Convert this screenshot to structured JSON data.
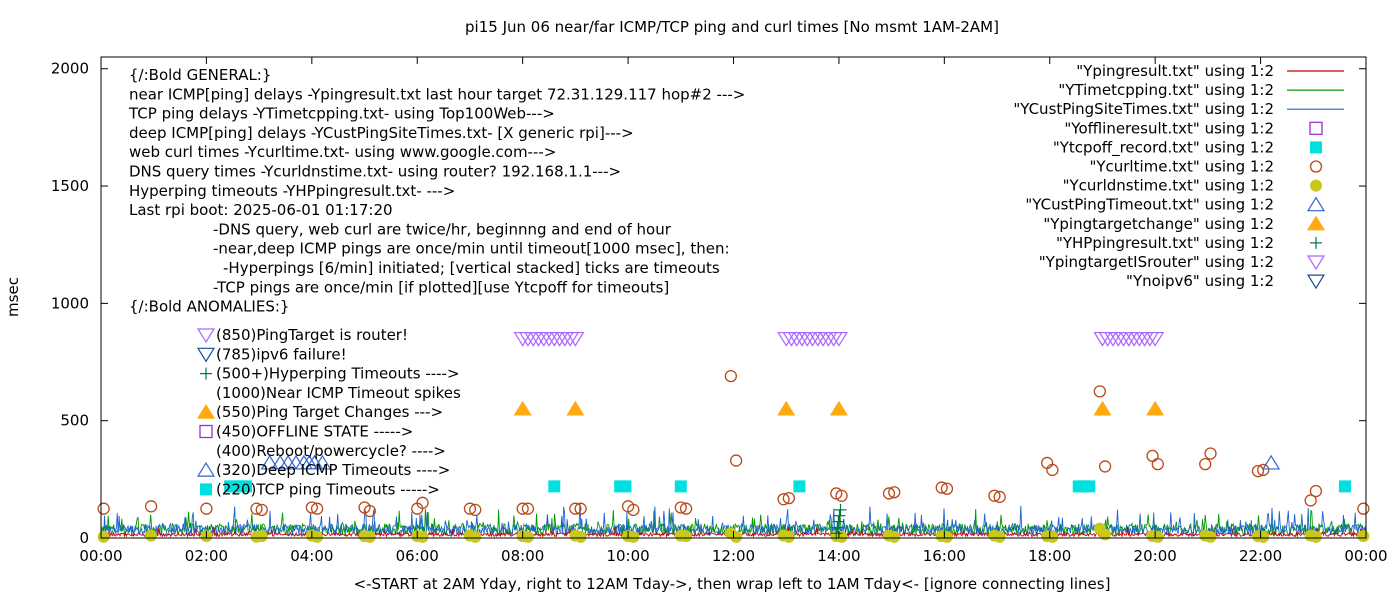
{
  "chart_data": {
    "type": "scatter",
    "title": "pi15 Jun 06  near/far ICMP/TCP ping and curl times [No msmt 1AM-2AM]",
    "xlabel": "<-START at 2AM Yday, right to 12AM Tday->, then wrap left to 1AM Tday<- [ignore connecting lines]",
    "ylabel": "msec",
    "xlim": [
      0,
      24
    ],
    "ylim": [
      0,
      2050
    ],
    "x_ticks": [
      {
        "v": 0,
        "label": "00:00"
      },
      {
        "v": 2,
        "label": "02:00"
      },
      {
        "v": 4,
        "label": "04:00"
      },
      {
        "v": 6,
        "label": "06:00"
      },
      {
        "v": 8,
        "label": "08:00"
      },
      {
        "v": 10,
        "label": "10:00"
      },
      {
        "v": 12,
        "label": "12:00"
      },
      {
        "v": 14,
        "label": "14:00"
      },
      {
        "v": 16,
        "label": "16:00"
      },
      {
        "v": 18,
        "label": "18:00"
      },
      {
        "v": 20,
        "label": "20:00"
      },
      {
        "v": 22,
        "label": "22:00"
      },
      {
        "v": 24,
        "label": "00:00"
      }
    ],
    "y_ticks": [
      {
        "v": 0,
        "label": "0"
      },
      {
        "v": 500,
        "label": "500"
      },
      {
        "v": 1000,
        "label": "1000"
      },
      {
        "v": 1500,
        "label": "1500"
      },
      {
        "v": 2000,
        "label": "2000"
      }
    ],
    "grid": false,
    "legend_position": "top-right",
    "legend": [
      {
        "label": "\"Ypingresult.txt\" using 1:2",
        "kind": "line",
        "color": "#cc0000"
      },
      {
        "label": "\"YTimetcpping.txt\" using 1:2",
        "kind": "line",
        "color": "#009900"
      },
      {
        "label": "\"YCustPingSiteTimes.txt\" using 1:2",
        "kind": "line",
        "color": "#1a66cc"
      },
      {
        "label": "\"Yofflineresult.txt\" using 1:2",
        "kind": "square-open",
        "color": "#9933cc"
      },
      {
        "label": "\"Ytcpoff_record.txt\" using 1:2",
        "kind": "square-filled",
        "color": "#00e0e0"
      },
      {
        "label": "\"Ycurltime.txt\" using 1:2",
        "kind": "circle-open",
        "color": "#b84a1a"
      },
      {
        "label": "\"Ycurldnstime.txt\" using 1:2",
        "kind": "circle-filled",
        "color": "#c8c81a"
      },
      {
        "label": "\"YCustPingTimeout.txt\" using 1:2",
        "kind": "triangle-up-open",
        "color": "#3366cc"
      },
      {
        "label": "\"Ypingtargetchange\" using 1:2",
        "kind": "triangle-up-filled",
        "color": "#ffaa11"
      },
      {
        "label": "\"YHPpingresult.txt\" using 1:2",
        "kind": "plus",
        "color": "#007744"
      },
      {
        "label": "\"YpingtargetISrouter\" using 1:2",
        "kind": "triangle-down-open",
        "color": "#aa66ff"
      },
      {
        "label": "\"Ynoipv6\" using 1:2",
        "kind": "triangle-down-open",
        "color": "#1a4d99"
      }
    ],
    "info_lines": [
      {
        "text": "{/:Bold GENERAL:}",
        "indent": 0
      },
      {
        "text": "near ICMP[ping] delays -Ypingresult.txt last hour target 72.31.129.117 hop#2 --->",
        "indent": 0
      },
      {
        "text": "TCP ping delays -YTimetcpping.txt- using Top100Web--->",
        "indent": 0
      },
      {
        "text": "deep ICMP[ping] delays -YCustPingSiteTimes.txt- [X generic rpi]--->",
        "indent": 0
      },
      {
        "text": "web curl times -Ycurltime.txt- using www.google.com--->",
        "indent": 0
      },
      {
        "text": "DNS query times -Ycurldnstime.txt- using router? 192.168.1.1--->",
        "indent": 0
      },
      {
        "text": "Hyperping timeouts -YHPpingresult.txt- --->",
        "indent": 0
      },
      {
        "text": "Last rpi boot: 2025-06-01 01:17:20",
        "indent": 0
      },
      {
        "text": "-DNS query, web curl are twice/hr, beginnng and end of hour",
        "indent": 1
      },
      {
        "text": "-near,deep ICMP pings are once/min until timeout[1000 msec], then:",
        "indent": 1
      },
      {
        "text": "-Hyperpings [6/min] initiated; [vertical stacked] ticks are timeouts",
        "indent": 2
      },
      {
        "text": "-TCP pings are once/min [if plotted][use Ytcpoff for timeouts]",
        "indent": 1
      },
      {
        "text": "{/:Bold ANOMALIES:}",
        "indent": 0
      }
    ],
    "anomaly_lines": [
      {
        "text": "(850)PingTarget is router!",
        "marker": "triangle-down-open",
        "color": "#aa66ff"
      },
      {
        "text": "(785)ipv6 failure!",
        "marker": "triangle-down-open",
        "color": "#1a4d99"
      },
      {
        "text": "(500+)Hyperping Timeouts ---->",
        "marker": "plus",
        "color": "#007744"
      },
      {
        "text": "(1000)Near ICMP Timeout spikes",
        "marker": "",
        "color": ""
      },
      {
        "text": "(550)Ping Target Changes --->",
        "marker": "triangle-up-filled",
        "color": "#ffaa11"
      },
      {
        "text": "(450)OFFLINE STATE ----->",
        "marker": "square-open",
        "color": "#9933cc"
      },
      {
        "text": "(400)Reboot/powercycle? ---->",
        "marker": "",
        "color": ""
      },
      {
        "text": "(320)Deep ICMP Timeouts ---->",
        "marker": "triangle-up-open",
        "color": "#3366cc"
      },
      {
        "text": "(220)TCP ping Timeouts ----->",
        "marker": "square-filled",
        "color": "#00e0e0"
      }
    ],
    "series": [
      {
        "name": "\"Ycurltime.txt\" using 1:2",
        "kind": "circle-open",
        "color": "#b84a1a",
        "points": [
          [
            0.05,
            125
          ],
          [
            0.95,
            135
          ],
          [
            2.0,
            125
          ],
          [
            2.95,
            125
          ],
          [
            3.05,
            120
          ],
          [
            4.0,
            130
          ],
          [
            4.1,
            125
          ],
          [
            5.0,
            130
          ],
          [
            5.1,
            115
          ],
          [
            6.0,
            125
          ],
          [
            6.1,
            150
          ],
          [
            7.0,
            125
          ],
          [
            7.1,
            120
          ],
          [
            8.0,
            125
          ],
          [
            8.1,
            125
          ],
          [
            9.0,
            125
          ],
          [
            9.1,
            125
          ],
          [
            10.0,
            135
          ],
          [
            10.1,
            120
          ],
          [
            11.0,
            130
          ],
          [
            11.1,
            125
          ],
          [
            11.95,
            690
          ],
          [
            12.05,
            330
          ],
          [
            12.95,
            165
          ],
          [
            13.05,
            170
          ],
          [
            13.95,
            190
          ],
          [
            14.05,
            180
          ],
          [
            14.95,
            190
          ],
          [
            15.05,
            195
          ],
          [
            15.95,
            215
          ],
          [
            16.05,
            210
          ],
          [
            16.95,
            180
          ],
          [
            17.05,
            175
          ],
          [
            17.95,
            320
          ],
          [
            18.05,
            290
          ],
          [
            18.95,
            625
          ],
          [
            19.05,
            305
          ],
          [
            19.95,
            350
          ],
          [
            20.05,
            315
          ],
          [
            20.95,
            315
          ],
          [
            21.05,
            360
          ],
          [
            21.95,
            285
          ],
          [
            22.05,
            290
          ],
          [
            22.95,
            160
          ],
          [
            23.05,
            200
          ],
          [
            23.95,
            125
          ]
        ]
      },
      {
        "name": "\"Ycurldnstime.txt\" using 1:2",
        "kind": "circle-filled",
        "color": "#c8c81a",
        "points": [
          [
            0.05,
            5
          ],
          [
            0.95,
            10
          ],
          [
            2.0,
            8
          ],
          [
            2.95,
            5
          ],
          [
            3.05,
            8
          ],
          [
            4.0,
            10
          ],
          [
            4.1,
            5
          ],
          [
            5.0,
            8
          ],
          [
            5.1,
            5
          ],
          [
            6.0,
            8
          ],
          [
            6.1,
            5
          ],
          [
            7.0,
            10
          ],
          [
            7.1,
            5
          ],
          [
            8.0,
            8
          ],
          [
            8.1,
            5
          ],
          [
            9.0,
            10
          ],
          [
            9.1,
            5
          ],
          [
            10.0,
            8
          ],
          [
            10.1,
            5
          ],
          [
            11.0,
            10
          ],
          [
            11.1,
            8
          ],
          [
            11.95,
            20
          ],
          [
            12.05,
            5
          ],
          [
            12.95,
            10
          ],
          [
            13.05,
            5
          ],
          [
            13.95,
            8
          ],
          [
            14.05,
            5
          ],
          [
            14.95,
            10
          ],
          [
            15.05,
            5
          ],
          [
            15.95,
            8
          ],
          [
            16.05,
            5
          ],
          [
            16.95,
            10
          ],
          [
            17.05,
            5
          ],
          [
            17.95,
            8
          ],
          [
            18.05,
            5
          ],
          [
            18.95,
            40
          ],
          [
            19.05,
            15
          ],
          [
            19.95,
            8
          ],
          [
            20.05,
            5
          ],
          [
            20.95,
            10
          ],
          [
            21.05,
            5
          ],
          [
            21.95,
            8
          ],
          [
            22.05,
            5
          ],
          [
            22.95,
            10
          ],
          [
            23.05,
            5
          ],
          [
            23.95,
            8
          ]
        ]
      },
      {
        "name": "\"Ytcpoff_record.txt\" using 1:2",
        "kind": "square-filled",
        "color": "#00e0e0",
        "points": [
          [
            2.45,
            220
          ],
          [
            2.55,
            220
          ],
          [
            2.65,
            220
          ],
          [
            2.75,
            220
          ],
          [
            8.6,
            220
          ],
          [
            9.85,
            220
          ],
          [
            9.95,
            220
          ],
          [
            11.0,
            220
          ],
          [
            13.25,
            220
          ],
          [
            18.55,
            220
          ],
          [
            18.65,
            220
          ],
          [
            18.75,
            220
          ],
          [
            23.6,
            220
          ]
        ]
      },
      {
        "name": "\"YCustPingTimeout.txt\" using 1:2",
        "kind": "triangle-up-open",
        "color": "#3366cc",
        "points": [
          [
            3.2,
            320
          ],
          [
            3.4,
            320
          ],
          [
            3.55,
            320
          ],
          [
            3.7,
            320
          ],
          [
            3.85,
            320
          ],
          [
            3.95,
            320
          ],
          [
            4.05,
            320
          ],
          [
            4.2,
            320
          ],
          [
            22.2,
            320
          ]
        ]
      },
      {
        "name": "\"Ypingtargetchange\" using 1:2",
        "kind": "triangle-up-filled",
        "color": "#ffaa11",
        "points": [
          [
            8.0,
            550
          ],
          [
            9.0,
            550
          ],
          [
            13.0,
            550
          ],
          [
            14.0,
            550
          ],
          [
            19.0,
            550
          ],
          [
            20.0,
            550
          ]
        ]
      },
      {
        "name": "\"YpingtargetISrouter\" using 1:2",
        "kind": "triangle-down-open",
        "color": "#aa66ff",
        "points": [
          [
            8.0,
            850
          ],
          [
            8.1,
            850
          ],
          [
            8.2,
            850
          ],
          [
            8.3,
            850
          ],
          [
            8.4,
            850
          ],
          [
            8.5,
            850
          ],
          [
            8.6,
            850
          ],
          [
            8.7,
            850
          ],
          [
            8.8,
            850
          ],
          [
            8.9,
            850
          ],
          [
            9.0,
            850
          ],
          [
            13.0,
            850
          ],
          [
            13.1,
            850
          ],
          [
            13.2,
            850
          ],
          [
            13.3,
            850
          ],
          [
            13.4,
            850
          ],
          [
            13.5,
            850
          ],
          [
            13.6,
            850
          ],
          [
            13.7,
            850
          ],
          [
            13.8,
            850
          ],
          [
            13.9,
            850
          ],
          [
            14.0,
            850
          ],
          [
            19.0,
            850
          ],
          [
            19.1,
            850
          ],
          [
            19.2,
            850
          ],
          [
            19.3,
            850
          ],
          [
            19.4,
            850
          ],
          [
            19.5,
            850
          ],
          [
            19.6,
            850
          ],
          [
            19.7,
            850
          ],
          [
            19.8,
            850
          ],
          [
            19.9,
            850
          ],
          [
            20.0,
            850
          ]
        ]
      },
      {
        "name": "\"YHPpingresult.txt\" using 1:2",
        "kind": "plus",
        "color": "#007744",
        "points": [
          [
            13.95,
            20
          ],
          [
            13.97,
            45
          ],
          [
            13.99,
            70
          ],
          [
            14.01,
            95
          ],
          [
            14.03,
            120
          ]
        ]
      }
    ],
    "near_icmp_baseline_ms": 20,
    "tcp_ping_baseline_ms": 35,
    "deep_icmp_baseline_ms": 30
  }
}
